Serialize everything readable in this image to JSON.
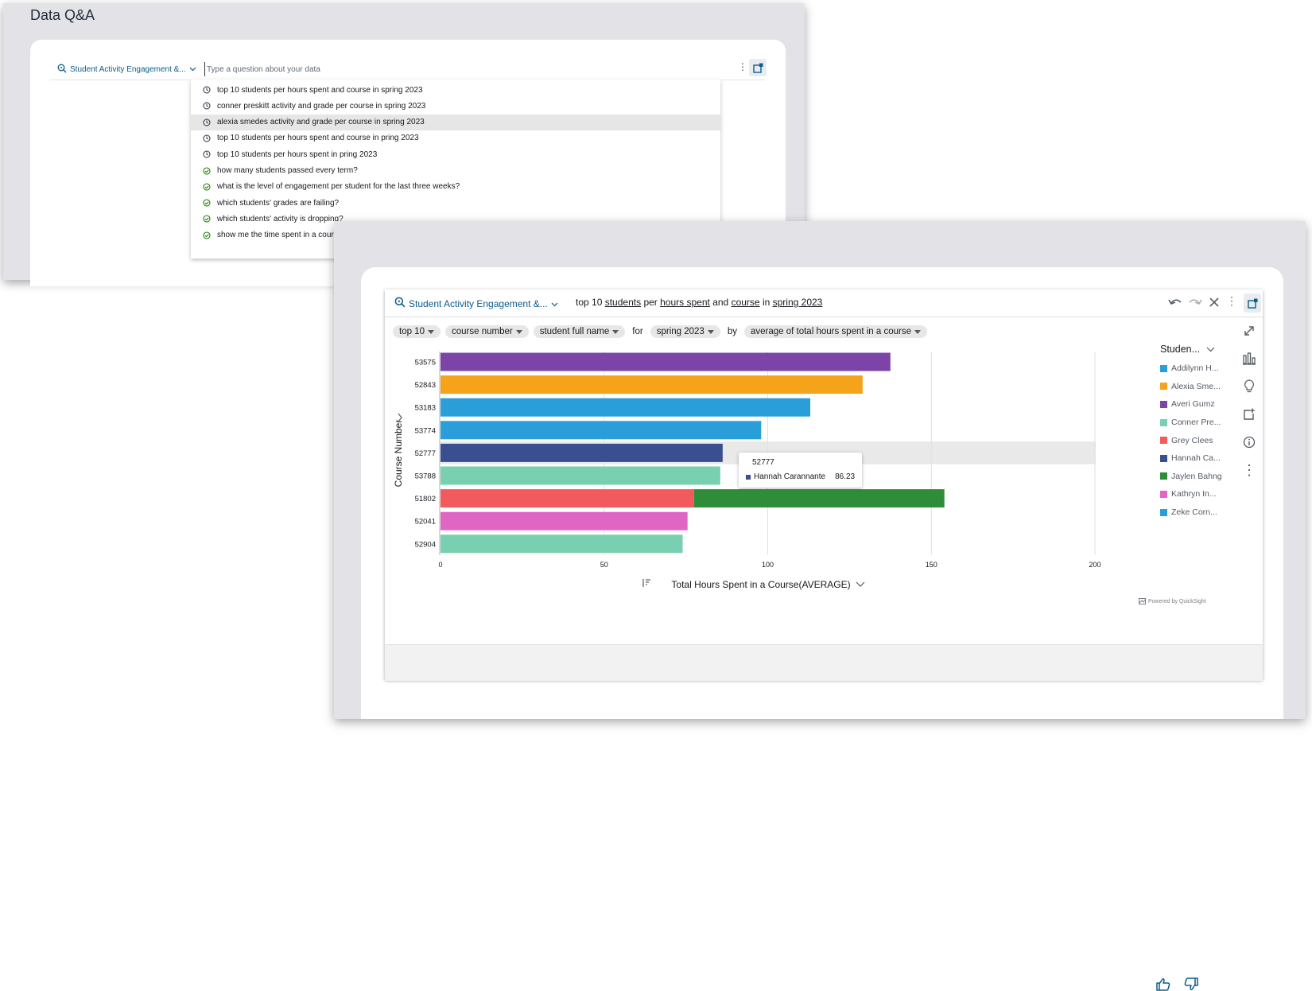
{
  "top_panel": {
    "title": "Data Q&A",
    "topic": "Student Activity Engagement &...",
    "search_placeholder": "Type a question about your data",
    "suggestions": [
      {
        "text": "top 10 students per hours spent and course in spring 2023",
        "icon": "history-icon"
      },
      {
        "text": "conner preskitt activity and grade per course in spring 2023",
        "icon": "history-icon"
      },
      {
        "text": "alexia smedes activity and grade per course in spring 2023",
        "icon": "history-icon"
      },
      {
        "text": "top 10 students per hours spent and course in pring 2023",
        "icon": "history-icon"
      },
      {
        "text": "top 10 students per hours spent in pring 2023",
        "icon": "history-icon"
      },
      {
        "text": "how many students passed every term?",
        "icon": "verified-icon"
      },
      {
        "text": "what is the level of engagement per student for the last three weeks?",
        "icon": "verified-icon"
      },
      {
        "text": "which students' grades are failing?",
        "icon": "verified-icon"
      },
      {
        "text": "which students' activity is dropping?",
        "icon": "verified-icon"
      },
      {
        "text": "show me the time spent in a course for aaden golio",
        "icon": "verified-icon"
      }
    ],
    "highlighted_index": 2
  },
  "qa": {
    "topic": "Student Activity Engagement &...",
    "question": {
      "w1": "top 10",
      "w2": "students",
      "w3": "per",
      "w4": "hours spent",
      "w5": "and",
      "w6": "course",
      "w7": "in",
      "w8": "spring 2023"
    },
    "chips": {
      "c1": "top 10",
      "c2": "course number",
      "c3": "student full name",
      "t1": "for",
      "c4": "spring 2023",
      "t2": "by",
      "c5": "average of total hours spent in a course"
    },
    "legend_title": "Studen...",
    "legend": [
      {
        "label": "Addilynn H...",
        "color": "#2a9ed8"
      },
      {
        "label": "Alexia Sme...",
        "color": "#f5a31a"
      },
      {
        "label": "Averi Gumz",
        "color": "#7d44a8"
      },
      {
        "label": "Conner Pre...",
        "color": "#78d0b0"
      },
      {
        "label": "Grey Clees",
        "color": "#f25a5e"
      },
      {
        "label": "Hannah Ca...",
        "color": "#3a4f8f"
      },
      {
        "label": "Jaylen Bahng",
        "color": "#2f8d3a"
      },
      {
        "label": "Kathryn In...",
        "color": "#e066c3"
      },
      {
        "label": "Zeke Corn...",
        "color": "#2a9ed8"
      }
    ],
    "tooltip": {
      "title": "52777",
      "name": "Hannah Carannante",
      "value": "86.23"
    },
    "powered_by": "Powered by QuickSight"
  },
  "chart_data": {
    "type": "bar",
    "orientation": "horizontal",
    "stacked": true,
    "categories": [
      "53575",
      "52843",
      "53183",
      "53774",
      "52777",
      "53788",
      "51802",
      "52041",
      "52904"
    ],
    "segments": [
      [
        {
          "value": 137.5,
          "color": "#7d44a8"
        }
      ],
      [
        {
          "value": 129,
          "color": "#f5a31a"
        }
      ],
      [
        {
          "value": 113,
          "color": "#2a9ed8"
        }
      ],
      [
        {
          "value": 98,
          "color": "#2a9ed8"
        }
      ],
      [
        {
          "value": 86.23,
          "color": "#3a4f8f"
        }
      ],
      [
        {
          "value": 85.5,
          "color": "#78d0b0"
        }
      ],
      [
        {
          "value": 77.5,
          "color": "#f25a5e"
        },
        {
          "value": 76.5,
          "color": "#2f8d3a"
        }
      ],
      [
        {
          "value": 75.5,
          "color": "#e066c3"
        }
      ],
      [
        {
          "value": 74,
          "color": "#78d0b0"
        }
      ]
    ],
    "xticks": [
      "0",
      "50",
      "100",
      "150",
      "200"
    ],
    "xlim": [
      0,
      200
    ],
    "xlabel": "Total Hours Spent in a Course(AVERAGE)",
    "ylabel": "Course Number",
    "highlighted_category": "52777"
  }
}
